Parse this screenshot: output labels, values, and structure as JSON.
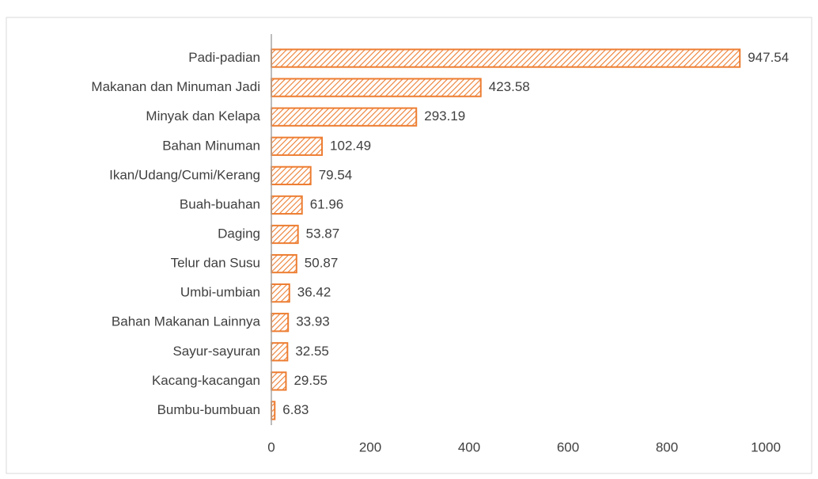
{
  "chart_data": {
    "type": "bar",
    "orientation": "horizontal",
    "categories": [
      "Padi-padian",
      "Makanan dan Minuman Jadi",
      "Minyak dan Kelapa",
      "Bahan Minuman",
      "Ikan/Udang/Cumi/Kerang",
      "Buah-buahan",
      "Daging",
      "Telur dan Susu",
      "Umbi-umbian",
      "Bahan Makanan Lainnya",
      "Sayur-sayuran",
      "Kacang-kacangan",
      "Bumbu-bumbuan"
    ],
    "values": [
      947.54,
      423.58,
      293.19,
      102.49,
      79.54,
      61.96,
      53.87,
      50.87,
      36.42,
      33.93,
      32.55,
      29.55,
      6.83
    ],
    "color": "#ED7D31",
    "xlim": [
      0,
      1000
    ],
    "xticks": [
      0,
      200,
      400,
      600,
      800,
      1000
    ],
    "grid": false
  }
}
